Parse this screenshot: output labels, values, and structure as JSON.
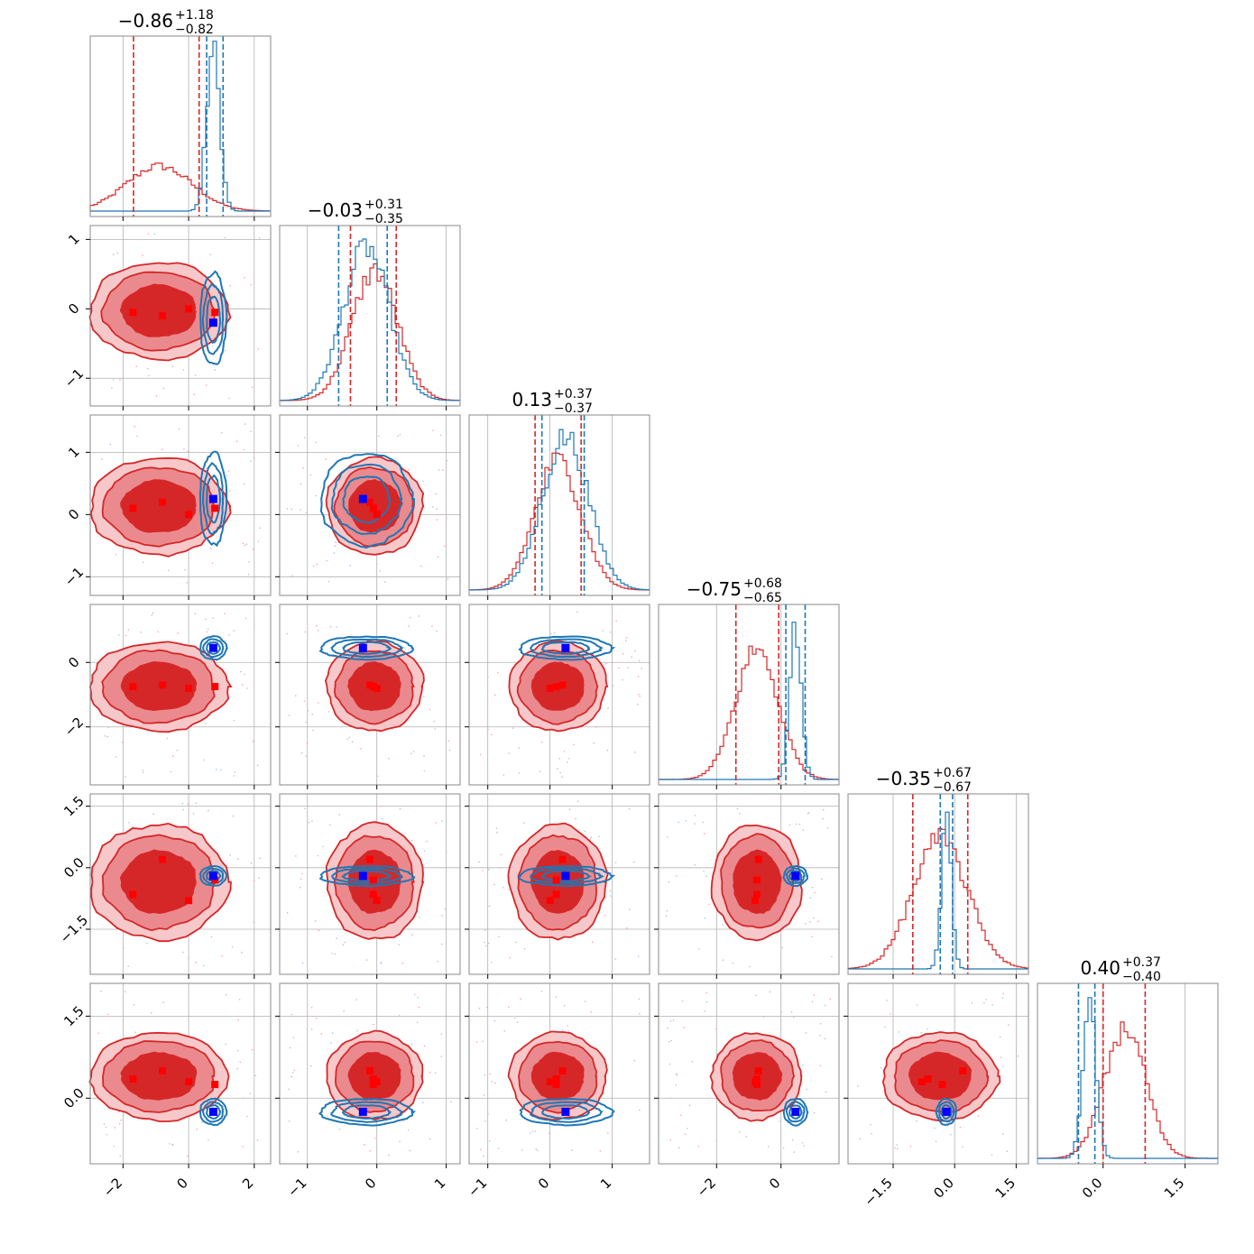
{
  "chart_data": {
    "type": "scatter",
    "kind": "corner-plot",
    "n_params": 6,
    "grid": true,
    "series": [
      {
        "color": "#d62728",
        "fill": true,
        "quantile_style": "dashed"
      },
      {
        "color": "#1f77b4",
        "fill": false,
        "quantile_style": "dashed"
      }
    ],
    "titles": [
      {
        "value": "−0.86",
        "plus": "+1.18",
        "minus": "−0.82"
      },
      {
        "value": "−0.03",
        "plus": "+0.31",
        "minus": "−0.35"
      },
      {
        "value": "0.13",
        "plus": "+0.37",
        "minus": "−0.37"
      },
      {
        "value": "−0.75",
        "plus": "+0.68",
        "minus": "−0.65"
      },
      {
        "value": "−0.35",
        "plus": "+0.67",
        "minus": "−0.67"
      },
      {
        "value": "0.40",
        "plus": "+0.37",
        "minus": "−0.40"
      }
    ],
    "ranges": [
      [
        -3.0,
        2.5
      ],
      [
        -1.4,
        1.2
      ],
      [
        -1.3,
        1.6
      ],
      [
        -3.8,
        1.8
      ],
      [
        -2.6,
        1.8
      ],
      [
        -1.2,
        2.1
      ]
    ],
    "ticks": [
      {
        "values": [
          -2,
          0,
          2
        ],
        "labels": [
          "−2",
          "0",
          "2"
        ]
      },
      {
        "values": [
          -1,
          0,
          1
        ],
        "labels": [
          "−1",
          "0",
          "1"
        ]
      },
      {
        "values": [
          -1,
          0,
          1
        ],
        "labels": [
          "−1",
          "0",
          "1"
        ]
      },
      {
        "values": [
          -2,
          0
        ],
        "labels": [
          "−2",
          "0"
        ]
      },
      {
        "values": [
          -1.5,
          0.0,
          1.5
        ],
        "labels": [
          "−1.5",
          "0.0",
          "1.5"
        ]
      },
      {
        "values": [
          0.0,
          1.5
        ],
        "labels": [
          "0.0",
          "1.5"
        ]
      }
    ],
    "red_posterior": {
      "mean": [
        -0.9,
        -0.03,
        0.13,
        -0.75,
        -0.35,
        0.4
      ],
      "std": [
        1.0,
        0.33,
        0.37,
        0.66,
        0.67,
        0.38
      ],
      "quantiles": [
        [
          -1.68,
          0.32
        ],
        [
          -0.38,
          0.28
        ],
        [
          -0.24,
          0.5
        ],
        [
          -1.4,
          -0.07
        ],
        [
          -1.02,
          0.32
        ],
        [
          0.0,
          0.77
        ]
      ]
    },
    "blue_posterior": {
      "mean": [
        0.75,
        -0.15,
        0.25,
        0.45,
        -0.2,
        -0.25
      ],
      "std": [
        0.2,
        0.33,
        0.37,
        0.18,
        0.12,
        0.12
      ],
      "quantiles": [
        [
          0.55,
          1.05
        ],
        [
          -0.55,
          0.15
        ],
        [
          -0.13,
          0.55
        ],
        [
          0.15,
          0.75
        ],
        [
          -0.35,
          -0.05
        ],
        [
          -0.45,
          -0.15
        ]
      ]
    },
    "blue_points": [
      0.75,
      -0.2,
      0.25,
      0.45,
      -0.2,
      -0.25
    ],
    "red_points": [
      [
        -1.7,
        -0.05,
        0.1,
        -0.75,
        -0.65,
        0.35
      ],
      [
        -0.8,
        -0.1,
        0.2,
        -0.7,
        0.2,
        0.5
      ],
      [
        0.0,
        0.0,
        0.0,
        -0.8,
        -0.8,
        0.3
      ],
      [
        0.8,
        -0.05,
        0.1,
        -0.75,
        -0.3,
        0.25
      ]
    ]
  }
}
